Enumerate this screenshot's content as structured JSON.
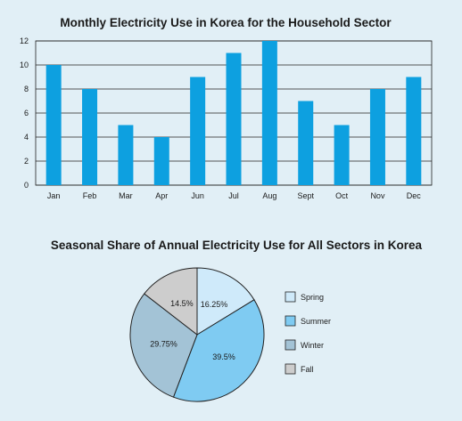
{
  "chart_data": [
    {
      "type": "bar",
      "title": "Monthly Electricity Use in Korea for the Household Sector",
      "xlabel": "",
      "ylabel": "",
      "categories": [
        "Jan",
        "Feb",
        "Mar",
        "Apr",
        "Jun",
        "Jul",
        "Aug",
        "Sept",
        "Oct",
        "Nov",
        "Dec"
      ],
      "values": [
        10,
        8,
        5,
        4,
        9,
        11,
        12,
        7,
        5,
        8,
        9
      ],
      "ylim": [
        0,
        12
      ],
      "yticks": [
        0,
        2,
        4,
        6,
        8,
        10,
        12
      ],
      "grid": true,
      "color": "#0da0e0"
    },
    {
      "type": "pie",
      "title": "Seasonal Share of  Annual Electricity Use for All Sectors in Korea",
      "legend_position": "right",
      "slices": [
        {
          "label": "Spring",
          "value": 16.25,
          "display": "16.25%",
          "color": "#cfeafa"
        },
        {
          "label": "Summer",
          "value": 39.5,
          "display": "39.5%",
          "color": "#7fcbf2"
        },
        {
          "label": "Winter",
          "value": 29.75,
          "display": "29.75%",
          "color": "#a3c3d6"
        },
        {
          "label": "Fall",
          "value": 14.5,
          "display": "14.5%",
          "color": "#cdcdcd"
        }
      ]
    }
  ]
}
